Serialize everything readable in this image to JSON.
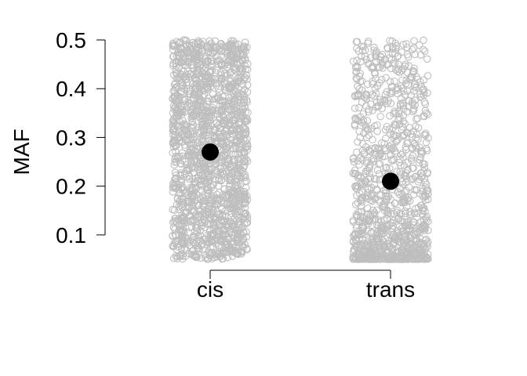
{
  "chart_data": {
    "type": "scatter",
    "subtype": "strip-jitter",
    "title": "",
    "xlabel": "",
    "ylabel": "MAF",
    "ylim": [
      0.05,
      0.5
    ],
    "yticks": [
      0.1,
      0.2,
      0.3,
      0.4,
      0.5
    ],
    "ytick_labels": [
      "0.1",
      "0.2",
      "0.3",
      "0.4",
      "0.5"
    ],
    "categories": [
      "cis",
      "trans"
    ],
    "grid": false,
    "legend": "none",
    "point_color": "#bebebe",
    "mean_color": "#000000",
    "series": [
      {
        "category": "cis",
        "y_range": [
          0.05,
          0.5
        ],
        "distribution": "uniform-dense",
        "mean": 0.27
      },
      {
        "category": "trans",
        "y_range": [
          0.05,
          0.5
        ],
        "distribution": "skewed-low",
        "mean": 0.21
      }
    ]
  }
}
